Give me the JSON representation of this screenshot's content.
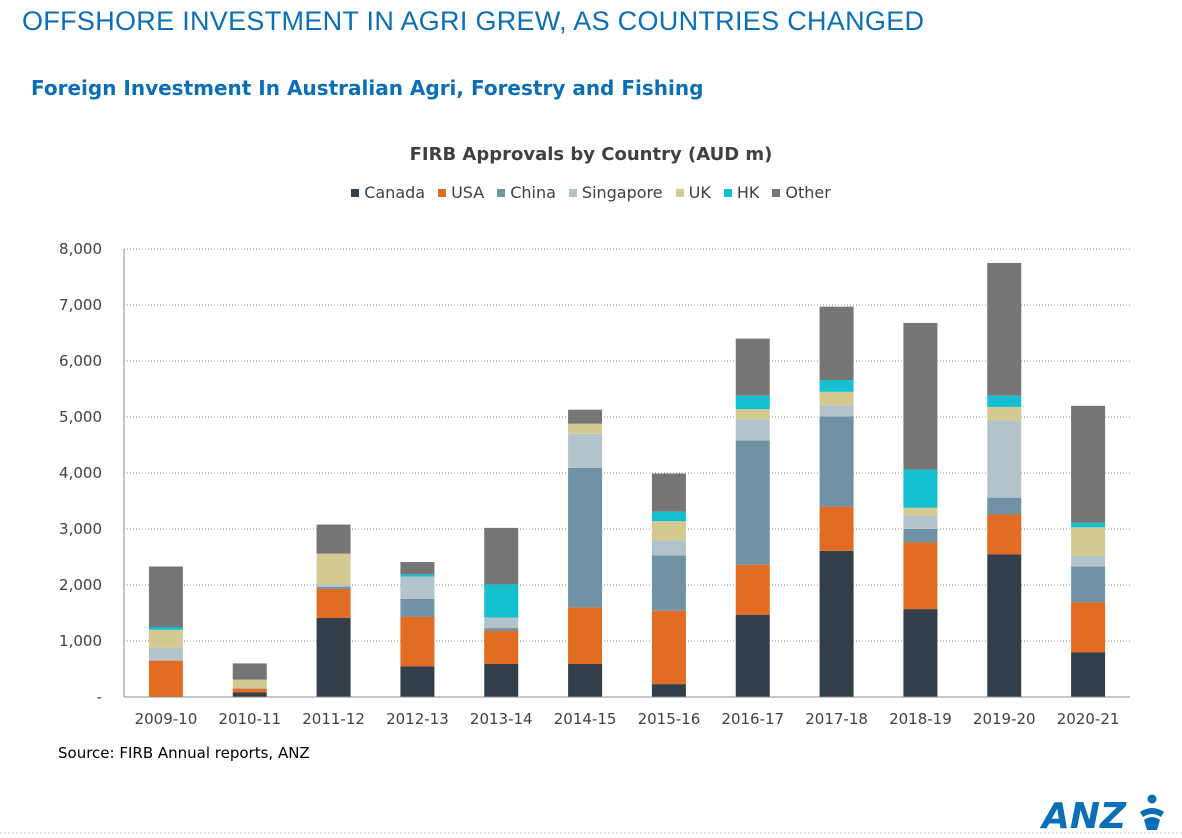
{
  "header": {
    "title": "OFFSHORE INVESTMENT IN AGRI GREW, AS COUNTRIES CHANGED",
    "subtitle": "Foreign Investment In Australian Agri, Forestry and Fishing"
  },
  "source": "Source: FIRB Annual reports, ANZ",
  "logo_text": "ANZ",
  "colors": {
    "Canada": "#323f4b",
    "USA": "#e16c22",
    "China": "#6f92a5",
    "Singapore": "#b3c3ca",
    "UK": "#d3c991",
    "HK": "#14bfd0",
    "Other": "#767676",
    "brand": "#0a6fb7"
  },
  "chart_data": {
    "type": "bar",
    "stacked": true,
    "title": "FIRB Approvals by Country (AUD m)",
    "xlabel": "",
    "ylabel": "",
    "ylim": [
      0,
      8000
    ],
    "yticks": [
      0,
      1000,
      2000,
      3000,
      4000,
      5000,
      6000,
      7000,
      8000
    ],
    "ytick_labels": [
      "-",
      "1,000",
      "2,000",
      "3,000",
      "4,000",
      "5,000",
      "6,000",
      "7,000",
      "8,000"
    ],
    "grid": true,
    "legend_position": "top",
    "categories": [
      "2009-10",
      "2010-11",
      "2011-12",
      "2012-13",
      "2013-14",
      "2014-15",
      "2015-16",
      "2016-17",
      "2017-18",
      "2018-19",
      "2019-20",
      "2020-21"
    ],
    "series": [
      {
        "name": "Canada",
        "values": [
          0,
          80,
          1410,
          550,
          590,
          590,
          230,
          1470,
          2610,
          1570,
          2550,
          800
        ]
      },
      {
        "name": "USA",
        "values": [
          650,
          70,
          520,
          880,
          590,
          1010,
          1310,
          890,
          790,
          1190,
          710,
          890
        ]
      },
      {
        "name": "China",
        "values": [
          0,
          0,
          40,
          320,
          50,
          2490,
          990,
          2220,
          1610,
          240,
          300,
          640
        ]
      },
      {
        "name": "Singapore",
        "values": [
          230,
          20,
          40,
          400,
          190,
          610,
          270,
          380,
          200,
          240,
          1380,
          190
        ]
      },
      {
        "name": "UK",
        "values": [
          320,
          140,
          550,
          0,
          0,
          180,
          340,
          180,
          240,
          140,
          240,
          510
        ]
      },
      {
        "name": "HK",
        "values": [
          50,
          0,
          0,
          40,
          590,
          0,
          170,
          240,
          210,
          680,
          200,
          80
        ]
      },
      {
        "name": "Other",
        "values": [
          1080,
          290,
          520,
          220,
          1010,
          250,
          680,
          1020,
          1310,
          2620,
          2370,
          2090
        ]
      }
    ]
  }
}
